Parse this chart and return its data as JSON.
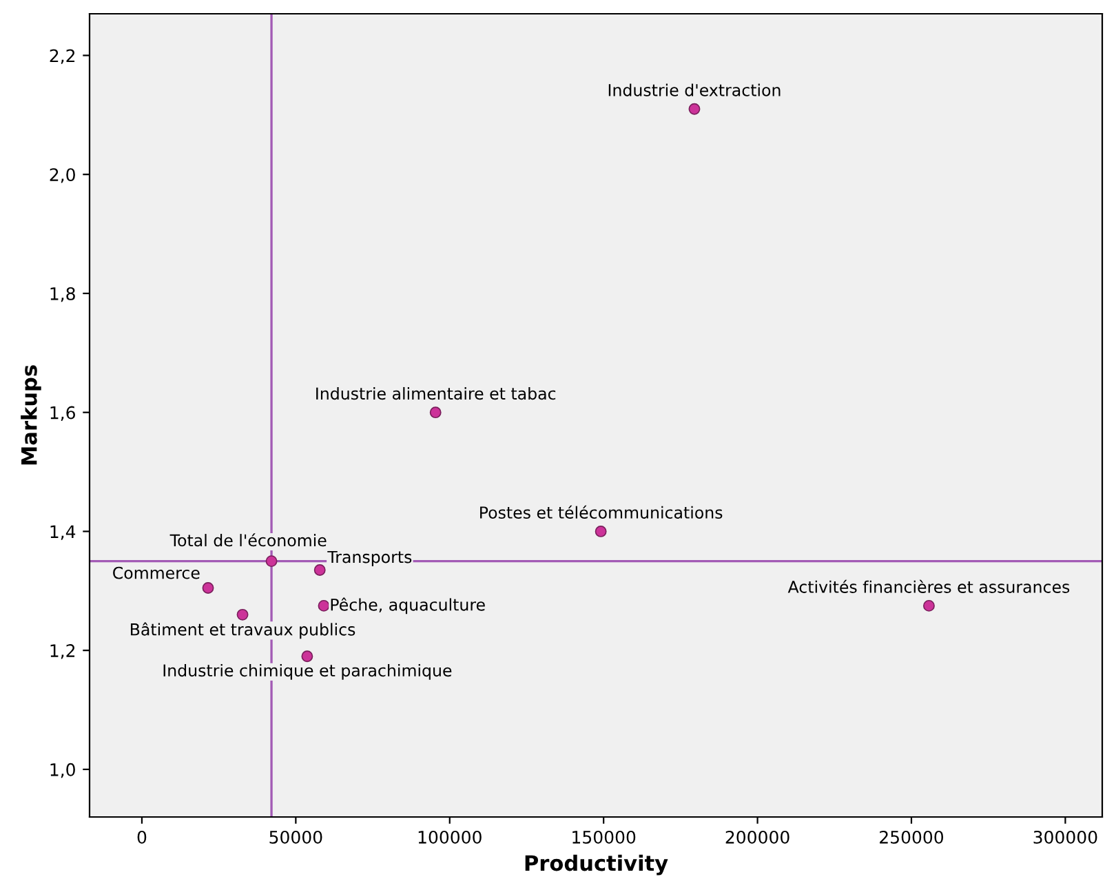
{
  "chart_data": {
    "type": "scatter",
    "xlabel": "Productivity",
    "ylabel": "Markups",
    "x": [
      179500,
      95400,
      149100,
      255700,
      42100,
      57800,
      21500,
      59100,
      32700,
      53700
    ],
    "values": [
      2.11,
      1.6,
      1.4,
      1.275,
      1.35,
      1.335,
      1.305,
      1.275,
      1.26,
      1.19
    ],
    "color": "#cc3399",
    "marker": "circle",
    "grid": false,
    "legend": false,
    "xlim": [
      -17000,
      312000
    ],
    "ylim": [
      0.92,
      2.27
    ],
    "xticks": [
      0,
      50000,
      100000,
      150000,
      200000,
      250000,
      300000
    ],
    "yticks": [
      {
        "value": 1.0,
        "label": "1,0"
      },
      {
        "value": 1.2,
        "label": "1,2"
      },
      {
        "value": 1.4,
        "label": "1,4"
      },
      {
        "value": 1.6,
        "label": "1,6"
      },
      {
        "value": 1.8,
        "label": "1,8"
      },
      {
        "value": 2.0,
        "label": "2,0"
      },
      {
        "value": 2.2,
        "label": "2,2"
      }
    ],
    "ref_lines": [
      {
        "axis": "x",
        "value": 42100,
        "color": "#a35bb5"
      },
      {
        "axis": "y",
        "value": 1.35,
        "color": "#a35bb5"
      }
    ],
    "annotations": [
      {
        "text": "Industrie d'extraction",
        "x": 179500,
        "y": 2.11
      },
      {
        "text": "Industrie alimentaire et tabac",
        "x": 95400,
        "y": 1.6
      },
      {
        "text": "Postes et télécommunications",
        "x": 149100,
        "y": 1.4
      },
      {
        "text": "Activités financières et assurances",
        "x": 255700,
        "y": 1.275
      },
      {
        "text": "Total de l'économie",
        "x": 42100,
        "y": 1.35
      },
      {
        "text": "Transports",
        "x": 57800,
        "y": 1.335
      },
      {
        "text": "Commerce",
        "x": 21500,
        "y": 1.305
      },
      {
        "text": "Pêche, aquaculture",
        "x": 59100,
        "y": 1.275
      },
      {
        "text": "Bâtiment et travaux publics",
        "x": 32700,
        "y": 1.26
      },
      {
        "text": "Industrie chimique et parachimique",
        "x": 53700,
        "y": 1.19
      }
    ]
  }
}
